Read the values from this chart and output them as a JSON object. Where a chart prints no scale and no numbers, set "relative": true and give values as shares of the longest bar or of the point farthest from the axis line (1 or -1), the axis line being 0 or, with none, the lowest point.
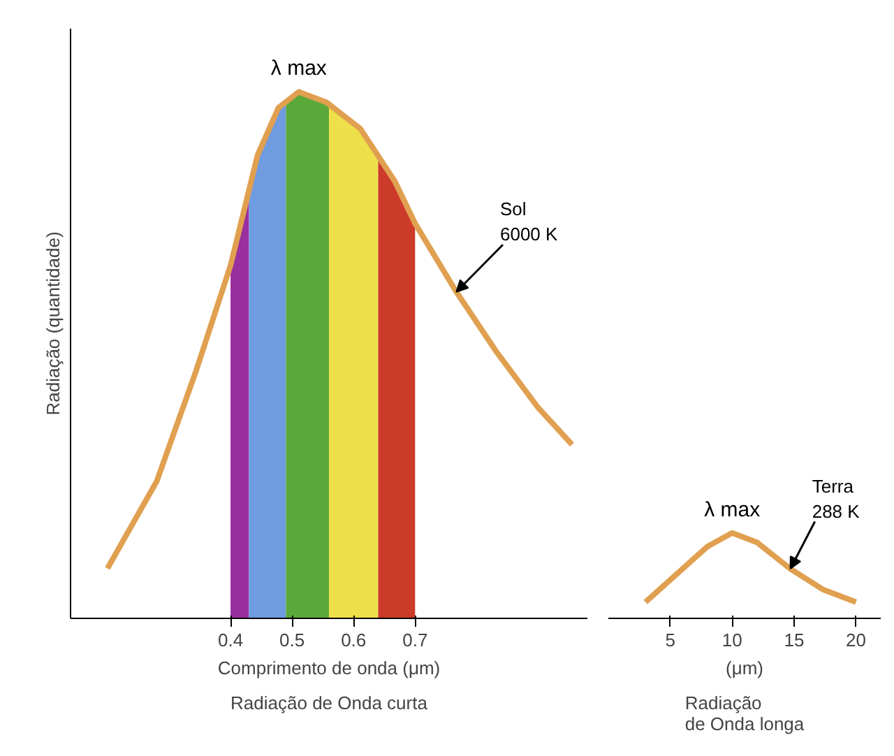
{
  "chart_data": [
    {
      "type": "line",
      "relative": true,
      "xlabel": "Comprimento de onda (μm)",
      "ylabel": "Radiação (quantidade)",
      "xlim": [
        0.14,
        0.98
      ],
      "xticks": [
        0.4,
        0.5,
        0.6,
        0.7
      ],
      "grid": false,
      "marker": "none",
      "line_style": "solid",
      "series": [
        {
          "color": "#e0a050",
          "x": [
            0.2,
            0.28,
            0.344,
            0.4,
            0.444,
            0.478,
            0.511,
            0.556,
            0.611,
            0.667,
            0.7,
            0.767,
            0.833,
            0.9,
            0.955
          ],
          "values": [
            0.095,
            0.26,
            0.47,
            0.67,
            0.88,
            0.97,
            1.0,
            0.98,
            0.93,
            0.83,
            0.75,
            0.62,
            0.505,
            0.4,
            0.33
          ]
        }
      ],
      "bands": [
        {
          "axis": "x",
          "from": 0.4,
          "to": 0.43,
          "color": "#9a2fa0"
        },
        {
          "axis": "x",
          "from": 0.43,
          "to": 0.49,
          "color": "#6f9be0"
        },
        {
          "axis": "x",
          "from": 0.49,
          "to": 0.56,
          "color": "#5aa83a"
        },
        {
          "axis": "x",
          "from": 0.56,
          "to": 0.64,
          "color": "#eee04a"
        },
        {
          "axis": "x",
          "from": 0.64,
          "to": 0.7,
          "color": "#cc3a2a"
        }
      ],
      "annotations": [
        {
          "text": "λ max",
          "x": 0.511,
          "y": 1.0
        },
        {
          "text": "Sol\n6000 K",
          "x": 0.767,
          "y": 0.62
        },
        "Radiação de Onda curta"
      ]
    },
    {
      "type": "line",
      "relative": true,
      "xlabel": "(μm)",
      "xlim": [
        0,
        22
      ],
      "xticks": [
        5,
        10,
        15,
        20
      ],
      "grid": false,
      "marker": "none",
      "line_style": "solid",
      "series": [
        {
          "color": "#e0a050",
          "x": [
            3,
            6,
            8,
            10,
            12,
            14.7,
            17.3,
            20
          ],
          "values": [
            0.19,
            0.58,
            0.84,
            1.0,
            0.89,
            0.58,
            0.34,
            0.19
          ]
        }
      ],
      "annotations": [
        {
          "text": "λ max",
          "x": 10,
          "y": 1.0
        },
        {
          "text": "Terra\n288 K",
          "x": 14.7,
          "y": 0.58
        },
        "Radiação\nde Onda longa"
      ]
    }
  ]
}
